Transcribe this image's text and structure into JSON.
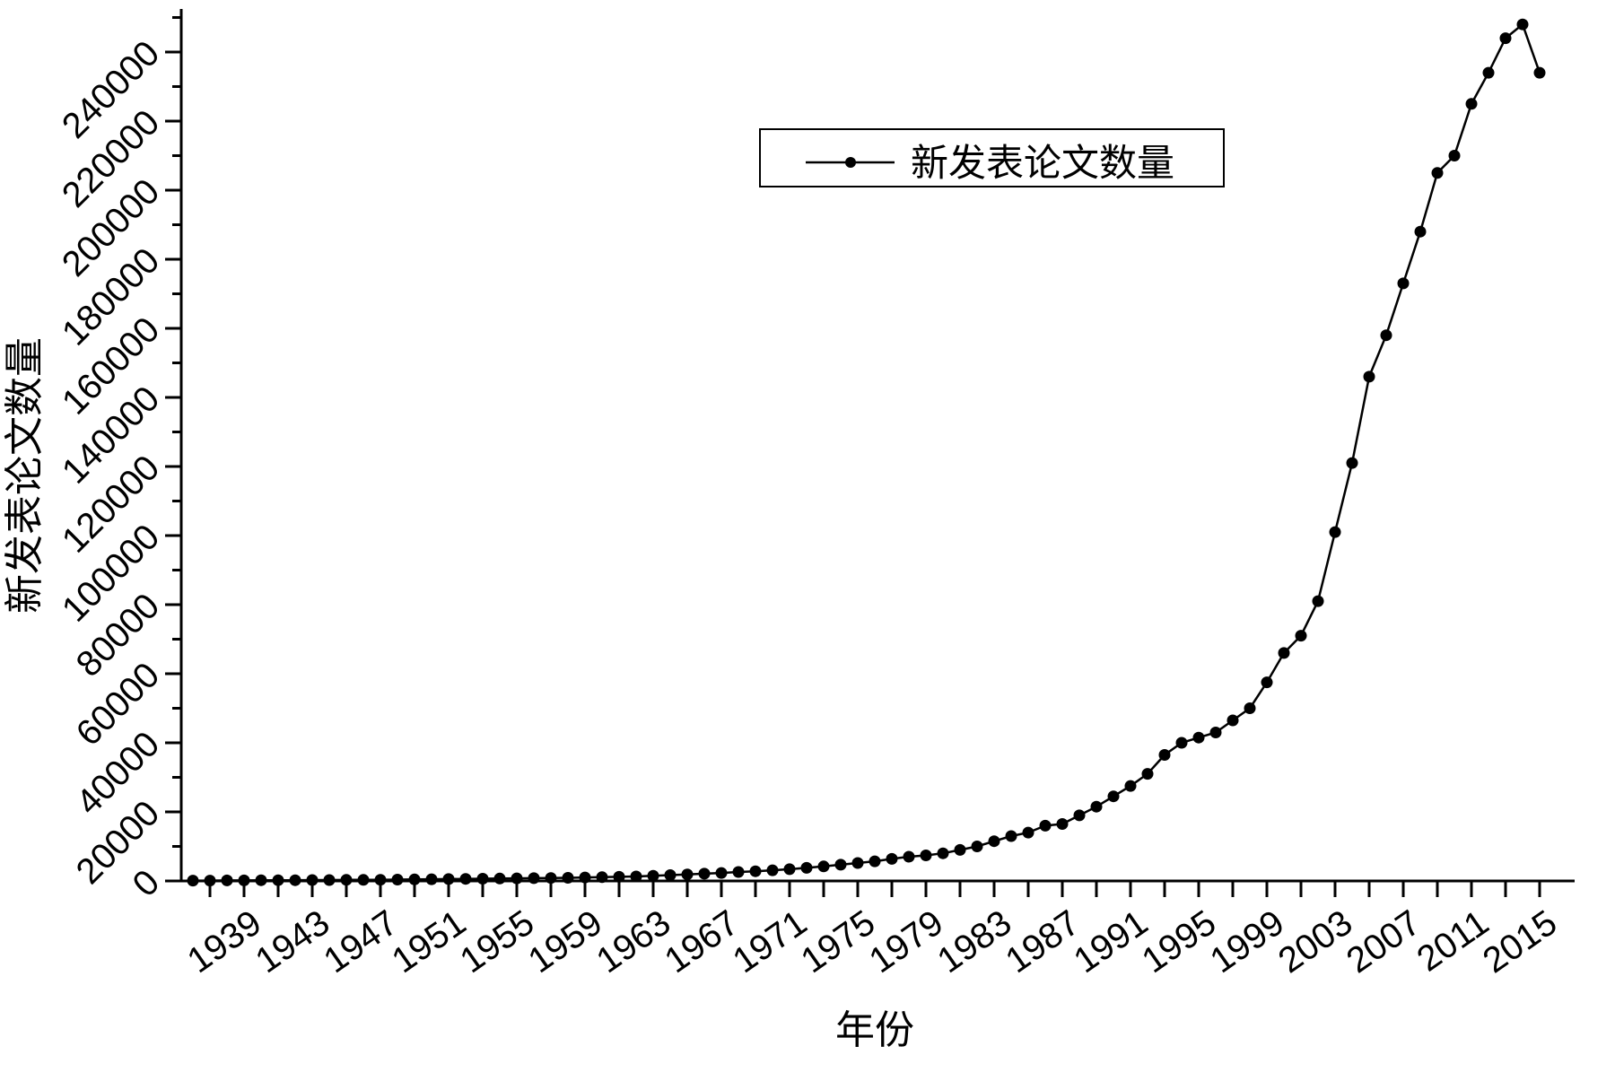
{
  "chart_data": {
    "type": "line",
    "title": "",
    "xlabel": "年份",
    "ylabel": "新发表论文数量",
    "xlim": [
      1935,
      2016
    ],
    "ylim": [
      0,
      250000
    ],
    "x_ticks": [
      1939,
      1943,
      1947,
      1951,
      1955,
      1959,
      1963,
      1967,
      1971,
      1975,
      1979,
      1983,
      1987,
      1991,
      1995,
      1999,
      2003,
      2007,
      2011,
      2015
    ],
    "y_ticks": [
      0,
      20000,
      40000,
      60000,
      80000,
      100000,
      120000,
      140000,
      160000,
      180000,
      200000,
      220000,
      240000
    ],
    "x_tick_labels": [
      "1939",
      "1943",
      "1947",
      "1951",
      "1955",
      "1959",
      "1963",
      "1967",
      "1971",
      "1975",
      "1979",
      "1983",
      "1987",
      "1991",
      "1995",
      "1999",
      "2003",
      "2007",
      "2011",
      "2015"
    ],
    "y_tick_labels": [
      "0",
      "20000",
      "40000",
      "60000",
      "80000",
      "100000",
      "120000",
      "140000",
      "160000",
      "180000",
      "200000",
      "220000",
      "240000"
    ],
    "legend_position": "top-center",
    "grid": false,
    "series": [
      {
        "name": "新发表论文数量",
        "color": "#000000",
        "marker": "circle",
        "x": [
          1936,
          1937,
          1938,
          1939,
          1940,
          1941,
          1942,
          1943,
          1944,
          1945,
          1946,
          1947,
          1948,
          1949,
          1950,
          1951,
          1952,
          1953,
          1954,
          1955,
          1956,
          1957,
          1958,
          1959,
          1960,
          1961,
          1962,
          1963,
          1964,
          1965,
          1966,
          1967,
          1968,
          1969,
          1970,
          1971,
          1972,
          1973,
          1974,
          1975,
          1976,
          1977,
          1978,
          1979,
          1980,
          1981,
          1982,
          1983,
          1984,
          1985,
          1986,
          1987,
          1988,
          1989,
          1990,
          1991,
          1992,
          1993,
          1994,
          1995,
          1996,
          1997,
          1998,
          1999,
          2000,
          2001,
          2002,
          2003,
          2004,
          2005,
          2006,
          2007,
          2008,
          2009,
          2010,
          2011,
          2012,
          2013,
          2014,
          2015
        ],
        "values": [
          100,
          100,
          150,
          150,
          200,
          200,
          200,
          250,
          250,
          300,
          300,
          350,
          400,
          450,
          500,
          550,
          600,
          650,
          700,
          750,
          800,
          850,
          900,
          1000,
          1100,
          1200,
          1300,
          1500,
          1700,
          1900,
          2100,
          2300,
          2600,
          2800,
          3100,
          3400,
          3800,
          4200,
          4700,
          5200,
          5700,
          6400,
          7000,
          7400,
          8000,
          9000,
          10000,
          11500,
          13000,
          14000,
          16000,
          16500,
          19000,
          21500,
          24500,
          27500,
          31000,
          36500,
          40000,
          41500,
          43000,
          46500,
          50000,
          57500,
          66000,
          71000,
          81000,
          101000,
          121000,
          146000,
          158000,
          173000,
          188000,
          205000,
          210000,
          225000,
          234000,
          244000,
          248000,
          234000
        ]
      }
    ]
  }
}
